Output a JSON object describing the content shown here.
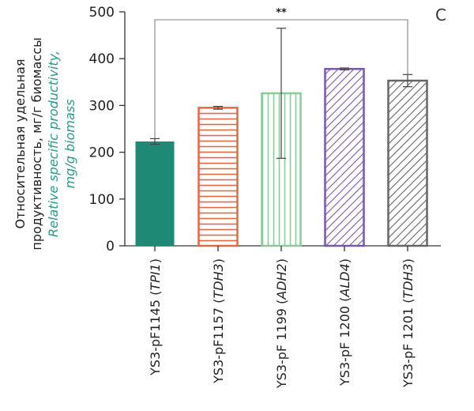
{
  "chart_data": {
    "type": "bar",
    "panel_label": "C",
    "ylabel_ru_line1": "Относительная удельная",
    "ylabel_ru_line2": "продуктивность, мг/г биомассы",
    "ylabel_en_line1": "Relative specific productivity,",
    "ylabel_en_line2": "mg/g biomass",
    "ylim": [
      0,
      500
    ],
    "yticks": [
      0,
      100,
      200,
      300,
      400,
      500
    ],
    "categories": [
      {
        "prefix": "YS3-pF1145 (",
        "gene": "TPI1",
        "suffix": ")"
      },
      {
        "prefix": "YS3-pF1157 (",
        "gene": "TDH3",
        "suffix": ")"
      },
      {
        "prefix": "YS3-pF 1199 (",
        "gene": "ADH2",
        "suffix": ")"
      },
      {
        "prefix": "YS3-pF 1200 (",
        "gene": "ALD4",
        "suffix": ")"
      },
      {
        "prefix": "YS3-pF 1201 (",
        "gene": "TDH3",
        "suffix": ")"
      }
    ],
    "values": [
      223,
      295,
      326,
      378,
      353
    ],
    "errors": [
      6,
      3,
      139,
      2,
      13
    ],
    "fills": [
      "solid",
      "hlines",
      "vlines",
      "diag-down",
      "diag-up"
    ],
    "colors": [
      "#1e8a76",
      "#e06a45",
      "#88cc99",
      "#7a56ad",
      "#666666"
    ],
    "significance": {
      "from": 0,
      "to": 4,
      "label": "**"
    }
  }
}
